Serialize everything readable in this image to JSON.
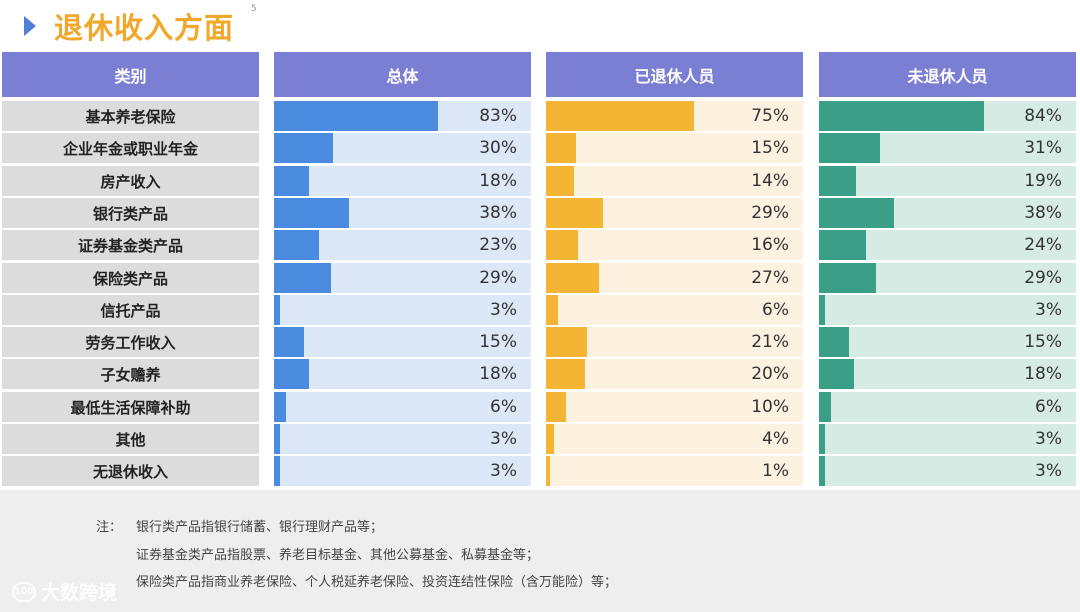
{
  "page": {
    "title": "退休收入方面",
    "page_number": "5"
  },
  "headers": {
    "category": "类别",
    "overall": "总体",
    "retired": "已退休人员",
    "not_retired": "未退休人员"
  },
  "colors": {
    "header_bg": "#7b7fd4",
    "title": "#f0a72a",
    "overall_fill": "#4a8be0",
    "overall_track": "#dce7f7",
    "retired_fill": "#f4b434",
    "retired_track": "#fdf1df",
    "not_retired_fill": "#3b9e86",
    "not_retired_track": "#d6ebe4"
  },
  "chart_data": {
    "type": "bar",
    "orientation": "horizontal",
    "title": "退休收入方面",
    "categories": [
      "基本养老保险",
      "企业年金或职业年金",
      "房产收入",
      "银行类产品",
      "证券基金类产品",
      "保险类产品",
      "信托产品",
      "劳务工作收入",
      "子女赡养",
      "最低生活保障补助",
      "其他",
      "无退休收入"
    ],
    "series": [
      {
        "name": "总体",
        "values": [
          83,
          30,
          18,
          38,
          23,
          29,
          3,
          15,
          18,
          6,
          3,
          3
        ],
        "labels": [
          "83%",
          "30%",
          "18%",
          "38%",
          "23%",
          "29%",
          "3%",
          "15%",
          "18%",
          "6%",
          "3%",
          "3%"
        ]
      },
      {
        "name": "已退休人员",
        "values": [
          75,
          15,
          14,
          29,
          16,
          27,
          6,
          21,
          20,
          10,
          4,
          1
        ],
        "labels": [
          "75%",
          "15%",
          "14%",
          "29%",
          "16%",
          "27%",
          "6%",
          "21%",
          "20%",
          "10%",
          "4%",
          "1%"
        ]
      },
      {
        "name": "未退休人员",
        "values": [
          84,
          31,
          19,
          38,
          24,
          29,
          3,
          15,
          18,
          6,
          3,
          3
        ],
        "labels": [
          "84%",
          "31%",
          "19%",
          "38%",
          "24%",
          "29%",
          "3%",
          "15%",
          "18%",
          "6%",
          "3%",
          "3%"
        ]
      }
    ],
    "xlim": [
      0,
      100
    ],
    "unit": "%"
  },
  "notes": {
    "label": "注：",
    "lines": [
      "银行类产品指银行储蓄、银行理财产品等；",
      "证券基金类产品指股票、养老目标基金、其他公募基金、私募基金等；",
      "保险类产品指商业养老保险、个人税延养老保险、投资连结性保险（含万能险）等；"
    ]
  },
  "watermark": {
    "icon": "100",
    "text": "大数跨境"
  }
}
